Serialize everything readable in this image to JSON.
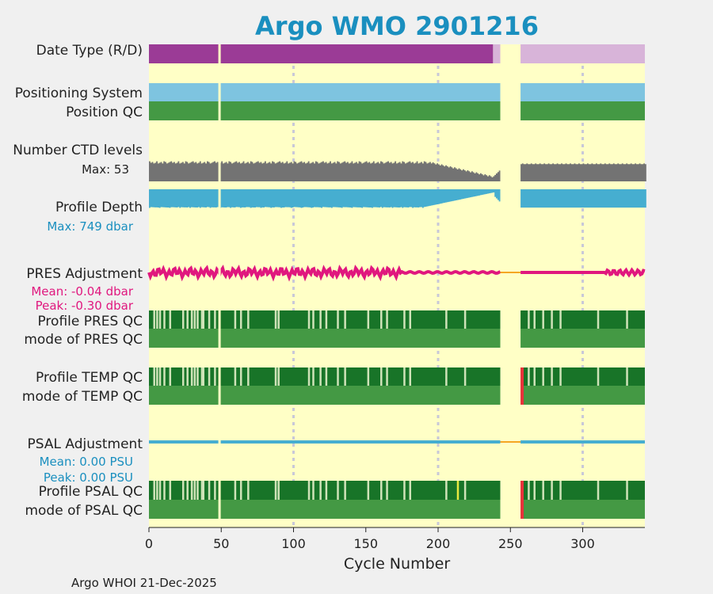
{
  "chart_data": {
    "type": "status-timeline",
    "title": "Argo WMO 2901216",
    "xlabel": "Cycle Number",
    "xlim": [
      0,
      343
    ],
    "xticks": [
      0,
      50,
      100,
      150,
      200,
      250,
      300
    ],
    "gridlines_at": [
      100,
      200,
      300
    ],
    "missing_cycles": [
      [
        243,
        257
      ]
    ],
    "gap_cycle": 48,
    "footer": "Argo WHOI 21-Dec-2025",
    "rows": {
      "date_type": {
        "label": "Date Type (R/D)",
        "segments": [
          {
            "from": 0,
            "to": 238,
            "value": "R",
            "color": "#9b3b96"
          },
          {
            "from": 238,
            "to": 243,
            "value": "D",
            "color": "#d8b4d9"
          },
          {
            "from": 257,
            "to": 343,
            "value": "D",
            "color": "#d8b4d9"
          }
        ]
      },
      "positioning_system": {
        "label": "Positioning System",
        "color": "#7ec4e0"
      },
      "position_qc": {
        "label": "Position QC",
        "color": "#449944"
      },
      "ctd_levels": {
        "label": "Number CTD levels",
        "max_label": "Max: 53",
        "max": 53,
        "color": "#737373"
      },
      "profile_depth": {
        "label": "Profile Depth",
        "max_label": "Max:  749 dbar",
        "max": 749,
        "unit": "dbar",
        "color": "#46aed0"
      },
      "pres_adjustment": {
        "label": "PRES Adjustment",
        "mean_label": "Mean: -0.04 dbar",
        "peak_label": "Peak: -0.30 dbar",
        "mean": -0.04,
        "peak": -0.3,
        "unit": "dbar",
        "color": "#e0177e"
      },
      "profile_pres_qc": {
        "label": "Profile PRES QC",
        "color": "#187428"
      },
      "mode_pres_qc": {
        "label": "mode of PRES QC",
        "color": "#449944"
      },
      "profile_temp_qc": {
        "label": "Profile TEMP QC",
        "color": "#187428"
      },
      "mode_temp_qc": {
        "label": "mode of TEMP QC",
        "color": "#449944"
      },
      "psal_adjustment": {
        "label": "PSAL Adjustment",
        "mean_label": "Mean: 0.00 PSU",
        "peak_label": "Peak: 0.00 PSU",
        "mean": 0.0,
        "peak": 0.0,
        "unit": "PSU",
        "color": "#46aed0"
      },
      "profile_psal_qc": {
        "label": "Profile PSAL QC",
        "color": "#187428"
      },
      "mode_psal_qc": {
        "label": "mode of PSAL QC",
        "color": "#449944"
      }
    },
    "light_qc_cycles": [
      3,
      5,
      7,
      10,
      14,
      23,
      26,
      29,
      31,
      33,
      36,
      37,
      41,
      45,
      59,
      63,
      68,
      87,
      89,
      110,
      113,
      118,
      122,
      130,
      135,
      151,
      160,
      164,
      176,
      180,
      205,
      218,
      262,
      266,
      272,
      278,
      284,
      310,
      330
    ],
    "flag_cycles": {
      "temp": [
        257
      ],
      "psal": [
        257
      ]
    },
    "yellow_flag_cycle": 213,
    "colors": {
      "background": "#ffffc6",
      "grid": "#c8c8d8",
      "title": "#1a8fbf",
      "gap_line": "#f5a623",
      "flag_red": "#e8313a",
      "flag_yellow": "#e8e840",
      "light_qc": "#cfe3b8"
    }
  }
}
